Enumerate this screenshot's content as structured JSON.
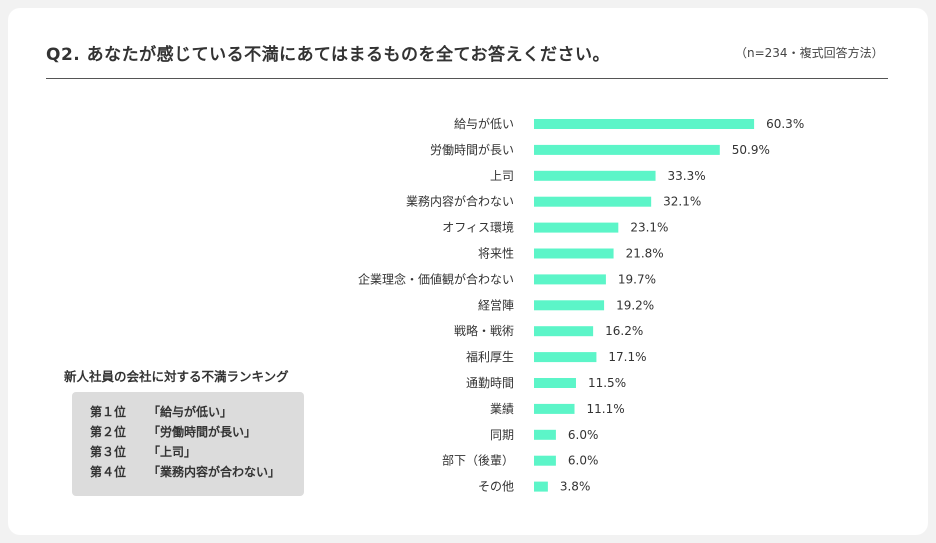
{
  "header": {
    "title": "Q2. あなたが感じている不満にあてはまるものを全てお答えください。",
    "note": "（n=234・複式回答方法）"
  },
  "chart_data": {
    "type": "bar",
    "orientation": "horizontal",
    "categories": [
      "給与が低い",
      "労働時間が長い",
      "上司",
      "業務内容が合わない",
      "オフィス環境",
      "将来性",
      "企業理念・価値観が合わない",
      "経営陣",
      "戦略・戦術",
      "福利厚生",
      "通勤時間",
      "業績",
      "同期",
      "部下（後輩）",
      "その他"
    ],
    "values": [
      60.3,
      50.9,
      33.3,
      32.1,
      23.1,
      21.8,
      19.7,
      19.2,
      16.2,
      17.1,
      11.5,
      11.1,
      6.0,
      6.0,
      3.8
    ],
    "value_labels": [
      "60.3%",
      "50.9%",
      "33.3%",
      "32.1%",
      "23.1%",
      "21.8%",
      "19.7%",
      "19.2%",
      "16.2%",
      "17.1%",
      "11.5%",
      "11.1%",
      "6.0%",
      "6.0%",
      "3.8%"
    ],
    "bar_color": "#5cf5c8",
    "grid": false
  },
  "ranking": {
    "title": "新人社員の会社に対する不満ランキング",
    "items": [
      {
        "pos": "第１位",
        "text": "「給与が低い」"
      },
      {
        "pos": "第２位",
        "text": "「労働時間が長い」"
      },
      {
        "pos": "第３位",
        "text": "「上司」"
      },
      {
        "pos": "第４位",
        "text": "「業務内容が合わない」"
      }
    ]
  }
}
